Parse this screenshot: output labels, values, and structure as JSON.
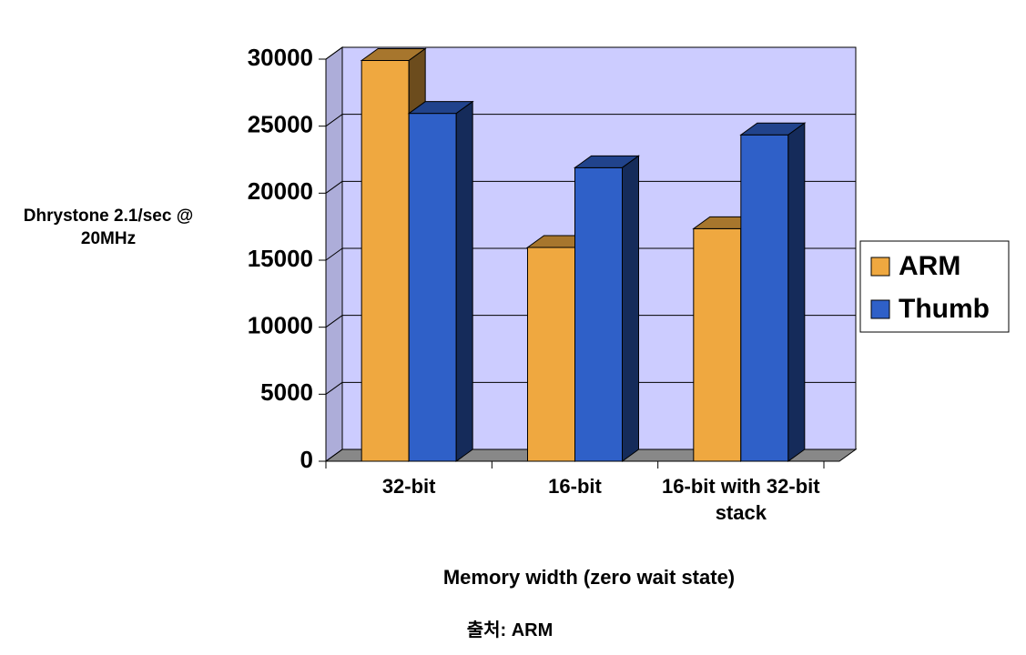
{
  "chart_data": {
    "type": "bar3d",
    "y_label": "Dhrystone 2.1/sec @ 20MHz",
    "x_label": "Memory width (zero wait state)",
    "source": "출처: ARM",
    "categories": [
      "32-bit",
      "16-bit",
      "16-bit with 32-bit stack"
    ],
    "series": [
      {
        "name": "ARM",
        "color": "#efa840",
        "values": [
          29900,
          15950,
          17350
        ]
      },
      {
        "name": "Thumb",
        "color": "#2f60c8",
        "values": [
          25950,
          21900,
          24350
        ]
      }
    ],
    "ylim": [
      0,
      30000
    ],
    "yticks": [
      0,
      5000,
      10000,
      15000,
      20000,
      25000,
      30000
    ],
    "grid": true,
    "legend": "right",
    "wall_color": "#ccccff"
  }
}
